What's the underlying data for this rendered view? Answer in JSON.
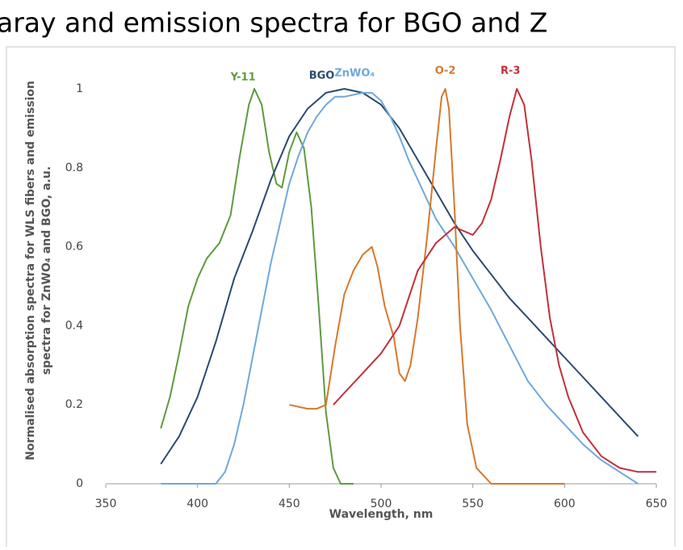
{
  "chart_data": {
    "type": "line",
    "title": "aray and emission spectra for BGO and Z",
    "x_label": "Wavelength, nm",
    "y_label": [
      "Normalised absorption spectra for WLS fibers and emission",
      "spectra for ZnWO₄ and BGO, a.u."
    ],
    "xlim": [
      350,
      650
    ],
    "xticks": [
      350,
      400,
      450,
      500,
      550,
      600,
      650
    ],
    "ylim": [
      0,
      1
    ],
    "yticks": [
      0,
      0.2,
      0.4,
      0.6,
      0.8,
      1
    ],
    "series": [
      {
        "name": "Y-11",
        "color": "#5e9a3e",
        "x": [
          380,
          385,
          390,
          395,
          400,
          405,
          412,
          418,
          423,
          428,
          431,
          435,
          439,
          443,
          446,
          450,
          454,
          458,
          462,
          466,
          470,
          474,
          478,
          485
        ],
        "values": [
          0.14,
          0.22,
          0.33,
          0.45,
          0.52,
          0.57,
          0.61,
          0.68,
          0.83,
          0.96,
          1.0,
          0.96,
          0.84,
          0.76,
          0.75,
          0.84,
          0.89,
          0.85,
          0.7,
          0.45,
          0.18,
          0.04,
          0.0,
          0.0
        ]
      },
      {
        "name": "BGO",
        "color": "#2b4a6f",
        "x": [
          380,
          390,
          400,
          410,
          420,
          430,
          440,
          450,
          460,
          470,
          480,
          490,
          500,
          510,
          520,
          530,
          540,
          550,
          560,
          570,
          580,
          590,
          600,
          610,
          620,
          630,
          640
        ],
        "values": [
          0.05,
          0.12,
          0.22,
          0.36,
          0.52,
          0.64,
          0.77,
          0.88,
          0.95,
          0.99,
          1.0,
          0.99,
          0.96,
          0.9,
          0.82,
          0.74,
          0.66,
          0.59,
          0.53,
          0.47,
          0.42,
          0.37,
          0.32,
          0.27,
          0.22,
          0.17,
          0.12
        ]
      },
      {
        "name": "ZnWO₄",
        "color": "#6fa8dc",
        "x": [
          380,
          410,
          415,
          420,
          425,
          430,
          435,
          440,
          445,
          450,
          455,
          460,
          465,
          470,
          475,
          480,
          490,
          495,
          500,
          505,
          510,
          515,
          520,
          525,
          530,
          540,
          550,
          560,
          570,
          580,
          590,
          600,
          610,
          620,
          630,
          640
        ],
        "values": [
          0,
          0,
          0.03,
          0.1,
          0.2,
          0.32,
          0.44,
          0.56,
          0.66,
          0.76,
          0.83,
          0.89,
          0.93,
          0.96,
          0.98,
          0.98,
          0.99,
          0.99,
          0.97,
          0.93,
          0.88,
          0.82,
          0.77,
          0.72,
          0.67,
          0.6,
          0.52,
          0.44,
          0.35,
          0.26,
          0.2,
          0.15,
          0.1,
          0.06,
          0.03,
          0.0
        ]
      },
      {
        "name": "O-2",
        "color": "#d7782b",
        "x": [
          450,
          460,
          465,
          470,
          475,
          480,
          485,
          490,
          495,
          498,
          502,
          507,
          510,
          513,
          516,
          520,
          525,
          530,
          533,
          535,
          537,
          540,
          543,
          547,
          552,
          560,
          580,
          600
        ],
        "values": [
          0.2,
          0.19,
          0.19,
          0.2,
          0.35,
          0.48,
          0.54,
          0.58,
          0.6,
          0.55,
          0.45,
          0.37,
          0.28,
          0.26,
          0.3,
          0.42,
          0.62,
          0.85,
          0.98,
          1.0,
          0.95,
          0.7,
          0.4,
          0.15,
          0.04,
          0.0,
          0.0,
          0.0
        ]
      },
      {
        "name": "R-3",
        "color": "#c1303b",
        "x": [
          474,
          480,
          490,
          500,
          510,
          515,
          520,
          530,
          540,
          545,
          550,
          555,
          560,
          565,
          570,
          574,
          578,
          582,
          587,
          592,
          597,
          602,
          610,
          620,
          630,
          640,
          650
        ],
        "values": [
          0.2,
          0.23,
          0.28,
          0.33,
          0.4,
          0.47,
          0.54,
          0.61,
          0.65,
          0.64,
          0.63,
          0.66,
          0.72,
          0.82,
          0.93,
          1.0,
          0.96,
          0.82,
          0.6,
          0.42,
          0.3,
          0.22,
          0.13,
          0.07,
          0.04,
          0.03,
          0.03
        ]
      }
    ]
  }
}
